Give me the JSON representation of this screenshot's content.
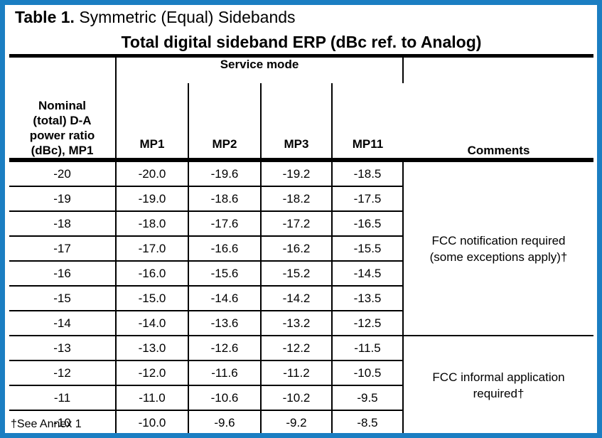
{
  "colors": {
    "frame_blue": "#1b7ec2",
    "rule_black": "#000000",
    "background": "#ffffff"
  },
  "caption": {
    "bold": "Table 1.",
    "rest": " Symmetric (Equal) Sidebands"
  },
  "title": "Total digital sideband ERP (dBc ref. to Analog)",
  "header": {
    "ratio_lines": [
      "Nominal",
      "(total) D-A",
      "power ratio",
      "(dBc), MP1"
    ],
    "service_mode": "Service mode",
    "modes": [
      "MP1",
      "MP2",
      "MP3",
      "MP11"
    ],
    "comments": "Comments"
  },
  "sections": [
    {
      "comment_lines": [
        "FCC notification required",
        "(some exceptions apply)†"
      ],
      "rows": [
        {
          "ratio": "-20",
          "values": [
            "-20.0",
            "-19.6",
            "-19.2",
            "-18.5"
          ]
        },
        {
          "ratio": "-19",
          "values": [
            "-19.0",
            "-18.6",
            "-18.2",
            "-17.5"
          ]
        },
        {
          "ratio": "-18",
          "values": [
            "-18.0",
            "-17.6",
            "-17.2",
            "-16.5"
          ]
        },
        {
          "ratio": "-17",
          "values": [
            "-17.0",
            "-16.6",
            "-16.2",
            "-15.5"
          ]
        },
        {
          "ratio": "-16",
          "values": [
            "-16.0",
            "-15.6",
            "-15.2",
            "-14.5"
          ]
        },
        {
          "ratio": "-15",
          "values": [
            "-15.0",
            "-14.6",
            "-14.2",
            "-13.5"
          ]
        },
        {
          "ratio": "-14",
          "values": [
            "-14.0",
            "-13.6",
            "-13.2",
            "-12.5"
          ]
        }
      ]
    },
    {
      "comment_lines": [
        "FCC informal application",
        "required†"
      ],
      "rows": [
        {
          "ratio": "-13",
          "values": [
            "-13.0",
            "-12.6",
            "-12.2",
            "-11.5"
          ]
        },
        {
          "ratio": "-12",
          "values": [
            "-12.0",
            "-11.6",
            "-11.2",
            "-10.5"
          ]
        },
        {
          "ratio": "-11",
          "values": [
            "-11.0",
            "-10.6",
            "-10.2",
            "-9.5"
          ]
        },
        {
          "ratio": "-10",
          "values": [
            "-10.0",
            "-9.6",
            "-9.2",
            "-8.5"
          ]
        }
      ]
    }
  ],
  "footnote": "†See Annex 1"
}
